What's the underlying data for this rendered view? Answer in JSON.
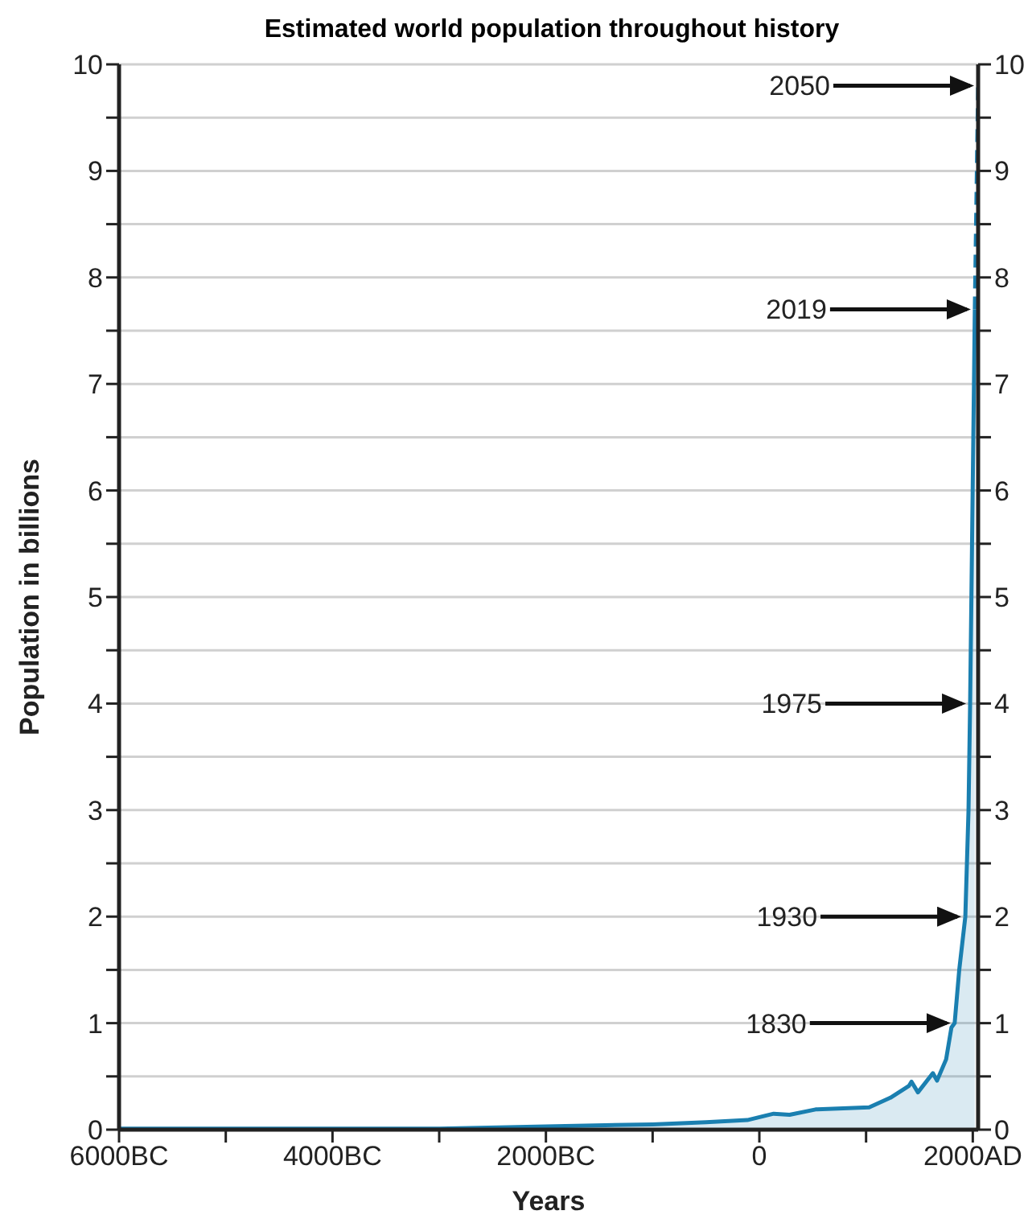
{
  "chart_data": {
    "type": "area",
    "title": "Estimated world population throughout history",
    "xlabel": "Years",
    "ylabel": "Population in billions",
    "series": [
      {
        "type": "area",
        "color": "#1a7fb0",
        "x": [
          -6000,
          -5000,
          -4000,
          -3000,
          -2000,
          -1000,
          -500,
          -113,
          134,
          283,
          527,
          1029,
          1228,
          1401,
          1426,
          1486,
          1626,
          1665,
          1750,
          1800,
          1830,
          1873,
          1930,
          1960,
          1975,
          1987,
          1999,
          2011,
          2019
        ],
        "values": [
          0.01,
          0.01,
          0.01,
          0.01,
          0.03,
          0.05,
          0.07,
          0.09,
          0.15,
          0.14,
          0.19,
          0.21,
          0.3,
          0.41,
          0.45,
          0.35,
          0.53,
          0.46,
          0.66,
          0.96,
          1.0,
          1.5,
          2.0,
          3.0,
          4.0,
          5.0,
          6.0,
          7.0,
          7.7
        ]
      },
      {
        "type": "line",
        "color": "#1a7fb0",
        "line_style": "dashed",
        "x": [
          2019,
          2050
        ],
        "values": [
          7.7,
          9.8
        ]
      }
    ],
    "xlim": [
      -6000,
      2050
    ],
    "xticks": [
      {
        "value": -6000,
        "label": "6000BC"
      },
      {
        "value": -5000,
        "label": null
      },
      {
        "value": -4000,
        "label": "4000BC"
      },
      {
        "value": -3000,
        "label": null
      },
      {
        "value": -2000,
        "label": "2000BC"
      },
      {
        "value": -1000,
        "label": null
      },
      0,
      {
        "value": 1000,
        "label": null
      },
      {
        "value": 2000,
        "label": "2000AD"
      }
    ],
    "ylim": [
      0,
      10
    ],
    "yticks": [
      0,
      {
        "value": 0.5,
        "label": null
      },
      1,
      {
        "value": 1.5,
        "label": null
      },
      2,
      {
        "value": 2.5,
        "label": null
      },
      3,
      {
        "value": 3.5,
        "label": null
      },
      4,
      {
        "value": 4.5,
        "label": null
      },
      5,
      {
        "value": 5.5,
        "label": null
      },
      6,
      {
        "value": 6.5,
        "label": null
      },
      7,
      {
        "value": 7.5,
        "label": null
      },
      8,
      {
        "value": 8.5,
        "label": null
      },
      9,
      {
        "value": 9.5,
        "label": null
      },
      10
    ],
    "y2lim": [
      0,
      10
    ],
    "y2ticks": [
      0,
      {
        "value": 0.5,
        "label": null
      },
      1,
      {
        "value": 1.5,
        "label": null
      },
      2,
      {
        "value": 2.5,
        "label": null
      },
      3,
      {
        "value": 3.5,
        "label": null
      },
      4,
      {
        "value": 4.5,
        "label": null
      },
      5,
      {
        "value": 5.5,
        "label": null
      },
      6,
      {
        "value": 6.5,
        "label": null
      },
      7,
      {
        "value": 7.5,
        "label": null
      },
      8,
      {
        "value": 8.5,
        "label": null
      },
      9,
      {
        "value": 9.5,
        "label": null
      },
      10
    ],
    "grid": "y",
    "legend": false,
    "annotations": [
      {
        "text": "2050",
        "x": 2050,
        "y": 9.8
      },
      {
        "text": "2019",
        "x": 2019,
        "y": 7.7
      },
      {
        "text": "1975",
        "x": 1975,
        "y": 4.0
      },
      {
        "text": "1930",
        "x": 1930,
        "y": 2.0
      },
      {
        "text": "1830",
        "x": 1830,
        "y": 1.0
      }
    ]
  }
}
